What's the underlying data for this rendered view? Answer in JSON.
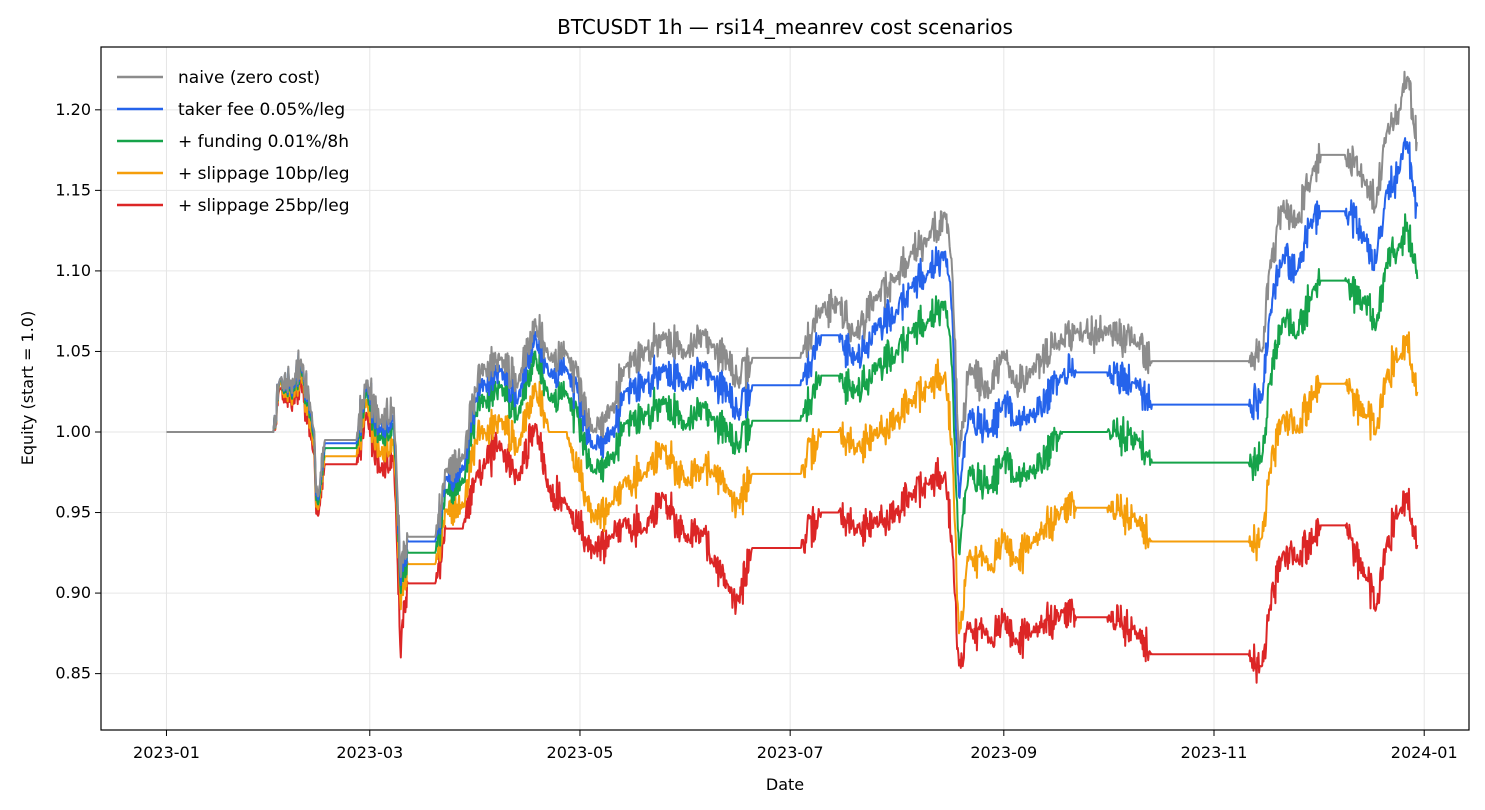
{
  "chart_data": {
    "type": "line",
    "title": "BTCUSDT 1h — rsi14_meanrev cost scenarios",
    "xlabel": "Date",
    "ylabel": "Equity (start = 1.0)",
    "xlim": [
      "2022-12-13",
      "2024-01-14"
    ],
    "ylim": [
      0.815,
      1.239
    ],
    "x_ticks": [
      "2023-01-01",
      "2023-03-01",
      "2023-05-01",
      "2023-07-01",
      "2023-09-01",
      "2023-11-01",
      "2024-01-01"
    ],
    "x_tick_labels": [
      "2023-01",
      "2023-03",
      "2023-05",
      "2023-07",
      "2023-09",
      "2023-11",
      "2024-01"
    ],
    "y_ticks": [
      0.85,
      0.9,
      0.95,
      1.0,
      1.05,
      1.1,
      1.15,
      1.2
    ],
    "y_tick_labels": [
      "0.85",
      "0.90",
      "0.95",
      "1.00",
      "1.05",
      "1.10",
      "1.15",
      "1.20"
    ],
    "grid": true,
    "legend_position": "top-left",
    "series": [
      {
        "name": "naive (zero cost)",
        "color": "#8c8c8c",
        "x": [
          "2023-01-01",
          "2023-02-01",
          "2023-02-03",
          "2023-02-07",
          "2023-02-09",
          "2023-02-12",
          "2023-02-14",
          "2023-02-16",
          "2023-02-25",
          "2023-02-28",
          "2023-03-04",
          "2023-03-08",
          "2023-03-10",
          "2023-03-11",
          "2023-03-12",
          "2023-03-20",
          "2023-03-23",
          "2023-03-28",
          "2023-04-01",
          "2023-04-03",
          "2023-04-08",
          "2023-04-13",
          "2023-04-18",
          "2023-04-22",
          "2023-04-27",
          "2023-05-05",
          "2023-05-10",
          "2023-05-14",
          "2023-05-20",
          "2023-05-25",
          "2023-06-01",
          "2023-06-06",
          "2023-06-08",
          "2023-06-13",
          "2023-06-16",
          "2023-06-20",
          "2023-07-04",
          "2023-07-10",
          "2023-07-15",
          "2023-07-20",
          "2023-07-26",
          "2023-08-01",
          "2023-08-05",
          "2023-08-10",
          "2023-08-15",
          "2023-08-17",
          "2023-08-19",
          "2023-08-22",
          "2023-08-28",
          "2023-09-01",
          "2023-09-04",
          "2023-09-09",
          "2023-09-18",
          "2023-09-22",
          "2023-10-01",
          "2023-10-10",
          "2023-10-14",
          "2023-11-11",
          "2023-11-15",
          "2023-11-17",
          "2023-11-21",
          "2023-11-25",
          "2023-11-30",
          "2023-12-02",
          "2023-12-06",
          "2023-12-09",
          "2023-12-15",
          "2023-12-18",
          "2023-12-21",
          "2023-12-25",
          "2023-12-27",
          "2023-12-29",
          "2023-12-30"
        ],
        "values": [
          1.0,
          1.0,
          1.033,
          1.03,
          1.045,
          1.012,
          0.96,
          0.995,
          0.995,
          1.032,
          1.005,
          1.015,
          0.91,
          0.93,
          0.935,
          0.935,
          0.975,
          0.985,
          1.027,
          1.04,
          1.045,
          1.03,
          1.07,
          1.045,
          1.05,
          1.0,
          1.015,
          1.04,
          1.05,
          1.06,
          1.05,
          1.06,
          1.055,
          1.045,
          1.03,
          1.046,
          1.046,
          1.077,
          1.08,
          1.06,
          1.085,
          1.095,
          1.112,
          1.12,
          1.135,
          1.1,
          0.985,
          1.04,
          1.025,
          1.05,
          1.03,
          1.037,
          1.058,
          1.062,
          1.063,
          1.055,
          1.044,
          1.044,
          1.05,
          1.1,
          1.14,
          1.13,
          1.165,
          1.172,
          1.172,
          1.172,
          1.155,
          1.14,
          1.185,
          1.2,
          1.22,
          1.19,
          1.18
        ]
      },
      {
        "name": "taker fee 0.05%/leg",
        "color": "#2563eb",
        "x": [
          "2023-01-01",
          "2023-02-01",
          "2023-02-03",
          "2023-02-07",
          "2023-02-09",
          "2023-02-12",
          "2023-02-14",
          "2023-02-16",
          "2023-02-25",
          "2023-02-28",
          "2023-03-04",
          "2023-03-08",
          "2023-03-10",
          "2023-03-11",
          "2023-03-12",
          "2023-03-20",
          "2023-03-23",
          "2023-03-28",
          "2023-04-01",
          "2023-04-03",
          "2023-04-08",
          "2023-04-13",
          "2023-04-18",
          "2023-04-22",
          "2023-04-27",
          "2023-05-05",
          "2023-05-10",
          "2023-05-14",
          "2023-05-20",
          "2023-05-25",
          "2023-06-01",
          "2023-06-06",
          "2023-06-08",
          "2023-06-13",
          "2023-06-16",
          "2023-06-20",
          "2023-07-04",
          "2023-07-10",
          "2023-07-15",
          "2023-07-20",
          "2023-07-26",
          "2023-08-01",
          "2023-08-05",
          "2023-08-10",
          "2023-08-15",
          "2023-08-17",
          "2023-08-19",
          "2023-08-22",
          "2023-08-28",
          "2023-09-01",
          "2023-09-04",
          "2023-09-09",
          "2023-09-18",
          "2023-09-22",
          "2023-10-01",
          "2023-10-10",
          "2023-10-14",
          "2023-11-11",
          "2023-11-15",
          "2023-11-17",
          "2023-11-21",
          "2023-11-25",
          "2023-11-30",
          "2023-12-02",
          "2023-12-06",
          "2023-12-09",
          "2023-12-15",
          "2023-12-18",
          "2023-12-21",
          "2023-12-25",
          "2023-12-27",
          "2023-12-29",
          "2023-12-30"
        ],
        "values": [
          1.0,
          1.0,
          1.033,
          1.028,
          1.044,
          1.01,
          0.958,
          0.993,
          0.993,
          1.03,
          1.0,
          1.01,
          0.905,
          0.925,
          0.932,
          0.932,
          0.97,
          0.978,
          1.021,
          1.03,
          1.038,
          1.02,
          1.062,
          1.035,
          1.04,
          0.99,
          1.0,
          1.025,
          1.03,
          1.04,
          1.03,
          1.04,
          1.035,
          1.025,
          1.01,
          1.029,
          1.029,
          1.06,
          1.06,
          1.045,
          1.065,
          1.075,
          1.09,
          1.1,
          1.112,
          1.075,
          0.96,
          1.01,
          1.0,
          1.02,
          1.005,
          1.01,
          1.035,
          1.037,
          1.037,
          1.03,
          1.017,
          1.017,
          1.02,
          1.07,
          1.11,
          1.1,
          1.135,
          1.137,
          1.137,
          1.137,
          1.12,
          1.105,
          1.15,
          1.163,
          1.18,
          1.15,
          1.14
        ]
      },
      {
        "name": "+ funding 0.01%/8h",
        "color": "#16a34a",
        "x": [
          "2023-01-01",
          "2023-02-01",
          "2023-02-03",
          "2023-02-07",
          "2023-02-09",
          "2023-02-12",
          "2023-02-14",
          "2023-02-16",
          "2023-02-25",
          "2023-02-28",
          "2023-03-04",
          "2023-03-08",
          "2023-03-10",
          "2023-03-11",
          "2023-03-12",
          "2023-03-20",
          "2023-03-23",
          "2023-03-28",
          "2023-04-01",
          "2023-04-03",
          "2023-04-08",
          "2023-04-13",
          "2023-04-18",
          "2023-04-22",
          "2023-04-27",
          "2023-05-05",
          "2023-05-10",
          "2023-05-14",
          "2023-05-20",
          "2023-05-25",
          "2023-06-01",
          "2023-06-06",
          "2023-06-08",
          "2023-06-13",
          "2023-06-16",
          "2023-06-20",
          "2023-07-04",
          "2023-07-10",
          "2023-07-15",
          "2023-07-20",
          "2023-07-26",
          "2023-08-01",
          "2023-08-05",
          "2023-08-10",
          "2023-08-15",
          "2023-08-17",
          "2023-08-19",
          "2023-08-22",
          "2023-08-28",
          "2023-09-01",
          "2023-09-04",
          "2023-09-09",
          "2023-09-18",
          "2023-09-22",
          "2023-10-01",
          "2023-10-10",
          "2023-10-14",
          "2023-11-11",
          "2023-11-15",
          "2023-11-17",
          "2023-11-21",
          "2023-11-25",
          "2023-11-30",
          "2023-12-02",
          "2023-12-06",
          "2023-12-09",
          "2023-12-15",
          "2023-12-18",
          "2023-12-21",
          "2023-12-25",
          "2023-12-27",
          "2023-12-29",
          "2023-12-30"
        ],
        "values": [
          1.0,
          1.0,
          1.032,
          1.026,
          1.042,
          1.007,
          0.955,
          0.99,
          0.99,
          1.026,
          0.995,
          1.005,
          0.9,
          0.918,
          0.925,
          0.925,
          0.962,
          0.97,
          1.012,
          1.02,
          1.028,
          1.01,
          1.05,
          1.02,
          1.025,
          0.975,
          0.985,
          1.005,
          1.01,
          1.02,
          1.005,
          1.015,
          1.01,
          1.0,
          0.99,
          1.007,
          1.007,
          1.035,
          1.035,
          1.025,
          1.04,
          1.05,
          1.062,
          1.07,
          1.081,
          1.04,
          0.925,
          0.975,
          0.965,
          0.985,
          0.97,
          0.975,
          1.0,
          1.0,
          1.0,
          0.995,
          0.981,
          0.981,
          0.985,
          1.03,
          1.07,
          1.06,
          1.09,
          1.094,
          1.094,
          1.094,
          1.08,
          1.065,
          1.105,
          1.117,
          1.13,
          1.105,
          1.095
        ]
      },
      {
        "name": "+ slippage 10bp/leg",
        "color": "#f59e0b",
        "x": [
          "2023-01-01",
          "2023-02-01",
          "2023-02-03",
          "2023-02-07",
          "2023-02-09",
          "2023-02-12",
          "2023-02-14",
          "2023-02-16",
          "2023-02-25",
          "2023-02-28",
          "2023-03-04",
          "2023-03-08",
          "2023-03-10",
          "2023-03-11",
          "2023-03-12",
          "2023-03-20",
          "2023-03-23",
          "2023-03-28",
          "2023-04-01",
          "2023-04-03",
          "2023-04-08",
          "2023-04-13",
          "2023-04-18",
          "2023-04-22",
          "2023-04-27",
          "2023-05-05",
          "2023-05-10",
          "2023-05-14",
          "2023-05-20",
          "2023-05-25",
          "2023-06-01",
          "2023-06-06",
          "2023-06-08",
          "2023-06-13",
          "2023-06-16",
          "2023-06-20",
          "2023-07-04",
          "2023-07-10",
          "2023-07-15",
          "2023-07-20",
          "2023-07-26",
          "2023-08-01",
          "2023-08-05",
          "2023-08-10",
          "2023-08-15",
          "2023-08-17",
          "2023-08-19",
          "2023-08-22",
          "2023-08-28",
          "2023-09-01",
          "2023-09-04",
          "2023-09-09",
          "2023-09-18",
          "2023-09-22",
          "2023-10-01",
          "2023-10-10",
          "2023-10-14",
          "2023-11-11",
          "2023-11-15",
          "2023-11-17",
          "2023-11-21",
          "2023-11-25",
          "2023-11-30",
          "2023-12-02",
          "2023-12-06",
          "2023-12-09",
          "2023-12-15",
          "2023-12-18",
          "2023-12-21",
          "2023-12-25",
          "2023-12-27",
          "2023-12-29",
          "2023-12-30"
        ],
        "values": [
          1.0,
          1.0,
          1.03,
          1.022,
          1.038,
          1.0,
          0.952,
          0.985,
          0.985,
          1.02,
          0.985,
          0.995,
          0.89,
          0.91,
          0.918,
          0.918,
          0.95,
          0.955,
          0.995,
          1.0,
          1.007,
          0.99,
          1.03,
          1.0,
          1.0,
          0.945,
          0.955,
          0.97,
          0.975,
          0.99,
          0.97,
          0.98,
          0.975,
          0.965,
          0.955,
          0.974,
          0.974,
          1.0,
          1.0,
          0.99,
          1.0,
          1.008,
          1.02,
          1.028,
          1.037,
          0.99,
          0.875,
          0.925,
          0.915,
          0.935,
          0.92,
          0.93,
          0.952,
          0.953,
          0.953,
          0.945,
          0.932,
          0.932,
          0.935,
          0.975,
          1.01,
          1.0,
          1.025,
          1.03,
          1.03,
          1.03,
          1.01,
          1.0,
          1.035,
          1.047,
          1.06,
          1.035,
          1.025
        ]
      },
      {
        "name": "+ slippage 25bp/leg",
        "color": "#dc2626",
        "x": [
          "2023-01-01",
          "2023-02-01",
          "2023-02-03",
          "2023-02-07",
          "2023-02-09",
          "2023-02-12",
          "2023-02-14",
          "2023-02-16",
          "2023-02-25",
          "2023-02-28",
          "2023-03-04",
          "2023-03-08",
          "2023-03-10",
          "2023-03-11",
          "2023-03-12",
          "2023-03-20",
          "2023-03-23",
          "2023-03-28",
          "2023-04-01",
          "2023-04-03",
          "2023-04-08",
          "2023-04-13",
          "2023-04-18",
          "2023-04-22",
          "2023-04-27",
          "2023-05-05",
          "2023-05-10",
          "2023-05-14",
          "2023-05-20",
          "2023-05-25",
          "2023-06-01",
          "2023-06-06",
          "2023-06-08",
          "2023-06-13",
          "2023-06-16",
          "2023-06-20",
          "2023-07-04",
          "2023-07-10",
          "2023-07-15",
          "2023-07-20",
          "2023-07-26",
          "2023-08-01",
          "2023-08-05",
          "2023-08-10",
          "2023-08-15",
          "2023-08-17",
          "2023-08-19",
          "2023-08-22",
          "2023-08-28",
          "2023-09-01",
          "2023-09-04",
          "2023-09-09",
          "2023-09-18",
          "2023-09-22",
          "2023-10-01",
          "2023-10-10",
          "2023-10-14",
          "2023-11-11",
          "2023-11-15",
          "2023-11-17",
          "2023-11-21",
          "2023-11-25",
          "2023-11-30",
          "2023-12-02",
          "2023-12-06",
          "2023-12-09",
          "2023-12-15",
          "2023-12-18",
          "2023-12-21",
          "2023-12-25",
          "2023-12-27",
          "2023-12-29",
          "2023-12-30"
        ],
        "values": [
          1.0,
          1.0,
          1.027,
          1.018,
          1.032,
          0.995,
          0.948,
          0.98,
          0.98,
          1.012,
          0.975,
          0.985,
          0.86,
          0.895,
          0.906,
          0.906,
          0.94,
          0.94,
          0.975,
          0.98,
          0.992,
          0.97,
          1.005,
          0.965,
          0.955,
          0.925,
          0.935,
          0.945,
          0.94,
          0.96,
          0.935,
          0.94,
          0.92,
          0.905,
          0.895,
          0.928,
          0.928,
          0.95,
          0.95,
          0.94,
          0.945,
          0.95,
          0.962,
          0.968,
          0.975,
          0.93,
          0.855,
          0.88,
          0.87,
          0.885,
          0.87,
          0.875,
          0.888,
          0.885,
          0.885,
          0.875,
          0.862,
          0.862,
          0.855,
          0.89,
          0.925,
          0.92,
          0.935,
          0.942,
          0.942,
          0.942,
          0.91,
          0.89,
          0.93,
          0.952,
          0.962,
          0.94,
          0.93
        ]
      }
    ]
  }
}
